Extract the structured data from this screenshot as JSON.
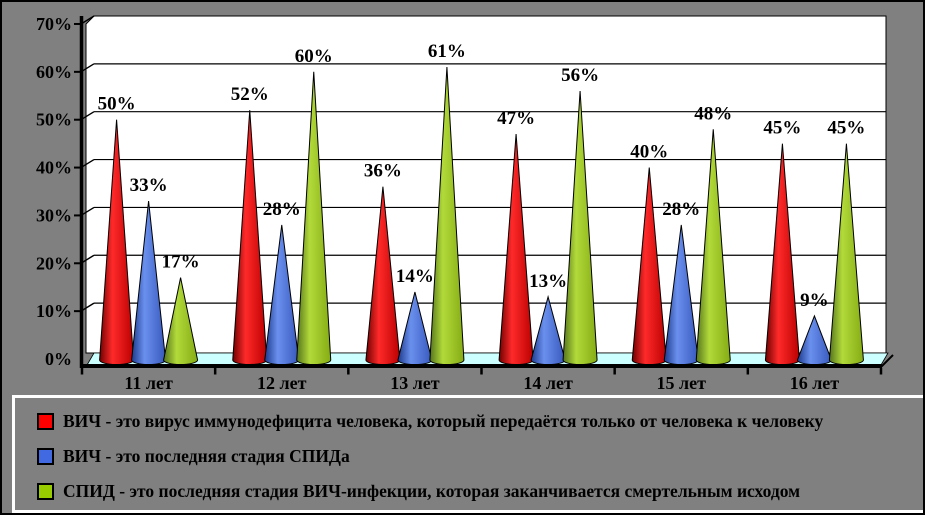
{
  "chart": {
    "background_color": "#808080",
    "wall_color": "#ffffff",
    "floor_color": "#ccffff",
    "gridline_color": "#000000",
    "axis_color": "#000000",
    "text_color": "#000000",
    "legend_border_color": "#ffffff"
  },
  "chart_data": {
    "type": "bar",
    "subtype": "3d-cone",
    "title": "",
    "xlabel": "",
    "ylabel": "",
    "ylim": [
      0,
      70
    ],
    "ytick_step": 10,
    "yticks": [
      "0%",
      "10%",
      "20%",
      "30%",
      "40%",
      "50%",
      "60%",
      "70%"
    ],
    "grid": true,
    "data_labels": true,
    "data_label_suffix": "%",
    "legend_position": "bottom",
    "categories": [
      "11 лет",
      "12 лет",
      "13 лет",
      "14 лет",
      "15 лет",
      "16 лет"
    ],
    "series": [
      {
        "name": "ВИЧ - это вирус иммунодефицита человека, который передаётся только от человека к человеку",
        "color": "#ff0000",
        "gradient": [
          "#700000",
          "#ff2a2a",
          "#bb0000"
        ],
        "values": [
          50,
          52,
          36,
          47,
          40,
          45
        ]
      },
      {
        "name": "ВИЧ - это последняя стадия СПИДа",
        "color": "#4169e1",
        "gradient": [
          "#1c3a8c",
          "#6a90ee",
          "#3758bd"
        ],
        "values": [
          33,
          28,
          14,
          13,
          28,
          9
        ]
      },
      {
        "name": "СПИД - это последняя стадия ВИЧ-инфекции, которая заканчивается смертельным исходом",
        "color": "#99cc00",
        "gradient": [
          "#55741c",
          "#b2da3a",
          "#85ac14"
        ],
        "values": [
          17,
          60,
          61,
          56,
          48,
          45
        ]
      }
    ]
  }
}
